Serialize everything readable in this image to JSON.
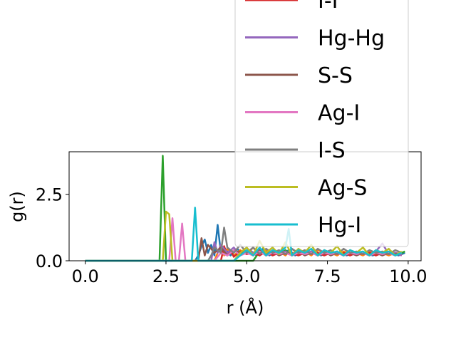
{
  "chart_data": {
    "type": "line",
    "xlabel": "r (Å)",
    "ylabel": "g(r)",
    "xlim": [
      -0.5,
      10.4
    ],
    "ylim": [
      0,
      4.1
    ],
    "xticks": [
      "0.0",
      "2.5",
      "5.0",
      "7.5",
      "10.0"
    ],
    "yticks": [
      "0.0",
      "2.5"
    ],
    "legend_position": "upper-right",
    "series": [
      {
        "name": "",
        "color": "#1f77b4",
        "x": [
          0,
          1,
          2,
          2.2,
          2.4,
          2.6,
          2.8,
          3.0,
          3.2,
          3.4,
          3.5,
          3.6,
          3.7,
          3.8,
          3.9,
          4.0,
          4.1,
          4.2,
          4.3,
          4.5,
          4.7,
          4.9,
          5.1,
          5.3,
          5.5,
          5.7,
          5.9,
          6.1,
          6.3,
          6.5,
          6.7,
          6.9,
          7.1,
          7.3,
          7.5,
          7.7,
          7.9,
          8.1,
          8.3,
          8.5,
          8.7,
          8.9,
          9.1,
          9.3,
          9.5,
          9.7,
          9.9
        ],
        "y": [
          0,
          0,
          0,
          0,
          0,
          0,
          0,
          0,
          0,
          0,
          0.2,
          0.55,
          0.8,
          0.3,
          0.6,
          0.2,
          1.35,
          0.3,
          0.5,
          0.2,
          0.45,
          0.25,
          0.4,
          0.2,
          0.45,
          0.2,
          0.35,
          0.25,
          0.4,
          0.2,
          0.35,
          0.3,
          0.4,
          0.2,
          0.35,
          0.25,
          0.3,
          0.2,
          0.35,
          0.25,
          0.3,
          0.2,
          0.3,
          0.25,
          0.3,
          0.2,
          0.3
        ]
      },
      {
        "name": "",
        "color": "#ff7f0e",
        "x": [
          0,
          2,
          4.0,
          4.1,
          4.2,
          4.3,
          4.4,
          4.6,
          4.8,
          5.0,
          5.2,
          5.4,
          5.6,
          5.8,
          6.0,
          6.2,
          6.4,
          6.6,
          6.8,
          7.0,
          7.2,
          7.4,
          7.6,
          7.8,
          8.0,
          8.2,
          8.4,
          8.6,
          8.8,
          9.0,
          9.2,
          9.4,
          9.6,
          9.8
        ],
        "y": [
          0,
          0,
          0,
          0.3,
          0.6,
          0.2,
          0.45,
          0.2,
          0.4,
          0.25,
          0.5,
          0.2,
          0.4,
          0.3,
          0.35,
          0.2,
          0.45,
          0.25,
          0.35,
          0.2,
          0.4,
          0.3,
          0.3,
          0.2,
          0.35,
          0.25,
          0.3,
          0.2,
          0.35,
          0.25,
          0.3,
          0.2,
          0.3,
          0.25
        ]
      },
      {
        "name": "",
        "color": "#2ca02c",
        "x": [
          0,
          1,
          2,
          2.2,
          2.3,
          2.4,
          2.5,
          2.6,
          2.8,
          3.0,
          3.2,
          3.4,
          3.6,
          3.8,
          4.0,
          4.2,
          4.4,
          4.6,
          4.8,
          5.0,
          5.2,
          5.4,
          5.6,
          5.8,
          6.0,
          6.2,
          6.4,
          6.6,
          6.8,
          7.0,
          7.2,
          7.4,
          7.6,
          7.8,
          8.0,
          8.2,
          8.4,
          8.6,
          8.8,
          9.0,
          9.2,
          9.4,
          9.6,
          9.8,
          9.9
        ],
        "y": [
          0,
          0,
          0,
          0,
          0,
          3.95,
          0,
          0,
          0,
          0,
          0,
          0,
          0,
          0,
          0,
          0,
          0,
          0,
          0,
          0,
          0,
          0.35,
          0.2,
          0.3,
          0.25,
          0.4,
          0.2,
          0.3,
          0.25,
          0.35,
          0.2,
          0.3,
          0.25,
          0.35,
          0.2,
          0.3,
          0.25,
          0.3,
          0.2,
          0.35,
          0.25,
          0.3,
          0.2,
          0.3,
          0.35
        ]
      },
      {
        "name": "I-I",
        "color": "#d62728",
        "x": [
          0,
          2,
          4.2,
          4.3,
          4.4,
          4.5,
          4.6,
          4.8,
          5.0,
          5.2,
          5.4,
          5.6,
          5.8,
          6.0,
          6.2,
          6.4,
          6.6,
          6.8,
          7.0,
          7.2,
          7.4,
          7.6,
          7.8,
          8.0,
          8.2,
          8.4,
          8.6,
          8.8,
          9.0,
          9.2,
          9.4,
          9.6,
          9.8
        ],
        "y": [
          0,
          0,
          0,
          0.55,
          0.2,
          0.4,
          0.15,
          0.35,
          0.25,
          0.3,
          0.2,
          0.35,
          0.2,
          0.3,
          0.25,
          0.3,
          0.2,
          0.3,
          0.25,
          0.3,
          0.2,
          0.3,
          0.25,
          0.3,
          0.2,
          0.3,
          0.25,
          0.3,
          0.2,
          0.3,
          0.25,
          0.3,
          0.2
        ]
      },
      {
        "name": "Hg-Hg",
        "color": "#9467bd",
        "x": [
          0,
          2,
          3.9,
          4.0,
          4.1,
          4.2,
          4.4,
          4.6,
          4.8,
          5.0,
          5.2,
          5.4,
          5.6,
          5.8,
          6.0,
          6.2,
          6.4,
          6.6,
          6.8,
          7.0,
          7.2,
          7.4,
          7.6,
          7.8,
          8.0,
          8.2,
          8.4,
          8.6,
          8.8,
          9.0,
          9.2,
          9.4,
          9.6,
          9.8
        ],
        "y": [
          0,
          0,
          0,
          0.7,
          0.3,
          0.6,
          0.3,
          0.5,
          0.2,
          0.4,
          0.3,
          0.45,
          0.2,
          0.4,
          0.3,
          0.35,
          0.2,
          0.4,
          0.3,
          0.35,
          0.2,
          0.4,
          0.3,
          0.3,
          0.2,
          0.4,
          0.25,
          0.3,
          0.2,
          0.35,
          0.65,
          0.25,
          0.3,
          0.2
        ]
      },
      {
        "name": "S-S",
        "color": "#8c564b",
        "x": [
          0,
          2,
          3.5,
          3.6,
          3.7,
          3.8,
          4.0,
          4.2,
          4.4,
          4.6,
          4.8,
          5.0,
          5.2,
          5.4,
          5.6,
          5.8,
          6.0,
          6.2,
          6.4,
          6.6,
          6.8,
          7.0,
          7.2,
          7.4,
          7.6,
          7.8,
          8.0,
          8.2,
          8.4,
          8.6,
          8.8,
          9.0,
          9.2,
          9.4,
          9.6,
          9.8
        ],
        "y": [
          0,
          0,
          0,
          0.85,
          0.2,
          0.6,
          0.3,
          0.5,
          0.2,
          0.4,
          0.3,
          0.35,
          0.2,
          0.4,
          0.25,
          0.35,
          0.2,
          0.3,
          0.25,
          0.35,
          0.2,
          0.3,
          0.25,
          0.35,
          0.2,
          0.3,
          0.25,
          0.3,
          0.2,
          0.3,
          0.25,
          0.3,
          0.2,
          0.3,
          0.25,
          0.3
        ]
      },
      {
        "name": "Ag-I",
        "color": "#e377c2",
        "x": [
          0,
          2,
          2.6,
          2.7,
          2.8,
          2.9,
          3.0,
          3.1,
          3.2,
          3.4,
          3.6,
          3.8,
          4.0,
          4.2,
          4.4,
          4.6,
          4.8,
          5.0,
          5.2,
          5.4,
          5.6,
          5.8,
          6.0,
          6.2,
          6.4,
          6.6,
          6.8,
          7.0,
          7.2,
          7.4,
          7.6,
          7.8,
          8.0,
          8.2,
          8.4,
          8.6,
          8.8,
          9.0,
          9.2,
          9.4,
          9.6,
          9.8
        ],
        "y": [
          0,
          0,
          0,
          1.6,
          0,
          0,
          1.4,
          0,
          0,
          0,
          0,
          0,
          0,
          0.3,
          0.2,
          0.4,
          0.2,
          0.3,
          0.2,
          0.35,
          0.2,
          0.3,
          0.25,
          0.3,
          0.2,
          0.3,
          0.25,
          0.3,
          0.2,
          0.3,
          0.25,
          0.3,
          0.2,
          0.3,
          0.25,
          0.3,
          0.2,
          0.3,
          0.25,
          0.3,
          0.2,
          0.3
        ]
      },
      {
        "name": "I-S",
        "color": "#7f7f7f",
        "x": [
          0,
          2,
          3.8,
          3.9,
          4.0,
          4.2,
          4.3,
          4.4,
          4.6,
          4.8,
          5.0,
          5.2,
          5.4,
          5.6,
          5.8,
          6.0,
          6.2,
          6.4,
          6.6,
          6.8,
          7.0,
          7.2,
          7.4,
          7.6,
          7.8,
          8.0,
          8.2,
          8.4,
          8.6,
          8.8,
          9.0,
          9.2,
          9.4,
          9.6,
          9.8
        ],
        "y": [
          0,
          0,
          0,
          0.2,
          0.5,
          0.3,
          1.25,
          0.5,
          0.3,
          0.6,
          0.3,
          0.5,
          0.25,
          0.45,
          0.3,
          0.4,
          0.25,
          0.45,
          0.3,
          0.4,
          0.25,
          0.45,
          0.3,
          0.4,
          0.25,
          0.45,
          0.3,
          0.35,
          0.25,
          0.4,
          0.3,
          0.35,
          0.25,
          0.4,
          0.3
        ]
      },
      {
        "name": "Ag-S",
        "color": "#bcbd22",
        "x": [
          0,
          1,
          2,
          2.2,
          2.4,
          2.5,
          2.6,
          2.7,
          2.8,
          3.0,
          3.2,
          3.4,
          3.6,
          3.8,
          4.0,
          4.2,
          4.4,
          4.6,
          4.8,
          5.0,
          5.2,
          5.4,
          5.6,
          5.8,
          6.0,
          6.2,
          6.4,
          6.6,
          6.8,
          7.0,
          7.2,
          7.4,
          7.6,
          7.8,
          8.0,
          8.2,
          8.4,
          8.6,
          8.8,
          9.0,
          9.2,
          9.4,
          9.6,
          9.8
        ],
        "y": [
          0,
          0,
          0,
          0,
          0,
          1.85,
          1.75,
          0,
          0,
          0,
          0,
          0,
          0,
          0,
          0,
          0,
          0,
          0,
          0.3,
          0.5,
          0.2,
          0.75,
          0.3,
          0.5,
          0.25,
          0.7,
          0.2,
          0.45,
          0.3,
          0.6,
          0.2,
          0.4,
          0.3,
          0.55,
          0.2,
          0.4,
          0.3,
          0.5,
          0.2,
          0.4,
          0.3,
          0.45,
          0.2,
          0.35
        ]
      },
      {
        "name": "Hg-I",
        "color": "#17becf",
        "x": [
          0,
          2,
          3.3,
          3.4,
          3.5,
          3.6,
          3.8,
          4.0,
          4.2,
          4.4,
          4.6,
          4.8,
          5.0,
          5.2,
          5.4,
          5.6,
          5.8,
          6.0,
          6.2,
          6.3,
          6.4,
          6.6,
          6.8,
          7.0,
          7.2,
          7.4,
          7.6,
          7.8,
          8.0,
          8.2,
          8.4,
          8.6,
          8.8,
          9.0,
          9.2,
          9.4,
          9.6,
          9.8
        ],
        "y": [
          0,
          0,
          0,
          2.0,
          0,
          0,
          0,
          0,
          0,
          0,
          0,
          0.2,
          0.4,
          0.2,
          0.5,
          0.2,
          0.4,
          0.3,
          0.5,
          1.2,
          0.2,
          0.4,
          0.3,
          0.45,
          0.2,
          0.4,
          0.3,
          0.35,
          0.2,
          0.4,
          0.3,
          0.35,
          0.2,
          0.4,
          0.3,
          0.35,
          0.2,
          0.3
        ]
      }
    ]
  }
}
